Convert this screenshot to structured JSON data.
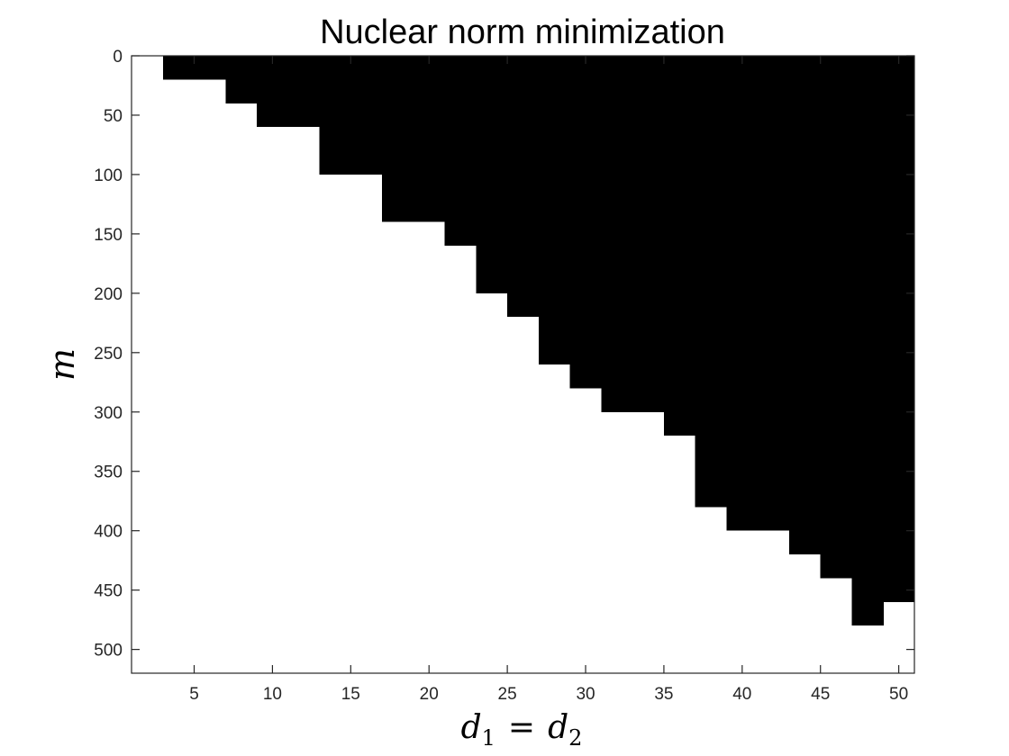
{
  "chart_data": {
    "type": "heatmap",
    "title": "Nuclear norm minimization",
    "xlabel": {
      "base": "d",
      "sub1": "1",
      "eq": "=",
      "sub2": "2"
    },
    "ylabel": "m",
    "x_ticks": [
      5,
      10,
      15,
      20,
      25,
      30,
      35,
      40,
      45,
      50
    ],
    "y_ticks": [
      0,
      50,
      100,
      150,
      200,
      250,
      300,
      350,
      400,
      450,
      500
    ],
    "xlim": [
      1,
      51
    ],
    "ylim": [
      0,
      520
    ],
    "y_reversed": true,
    "colors": {
      "success": "#ffffff",
      "failure": "#000000"
    },
    "column_centers": [
      2,
      4,
      6,
      8,
      10,
      12,
      14,
      16,
      18,
      20,
      22,
      24,
      26,
      28,
      30,
      32,
      34,
      36,
      38,
      40,
      42,
      44,
      46,
      48,
      50
    ],
    "white_region_starts_at_m": [
      0,
      20,
      20,
      40,
      60,
      60,
      100,
      100,
      140,
      140,
      160,
      200,
      220,
      260,
      280,
      300,
      300,
      320,
      380,
      400,
      400,
      420,
      440,
      480,
      460
    ]
  }
}
